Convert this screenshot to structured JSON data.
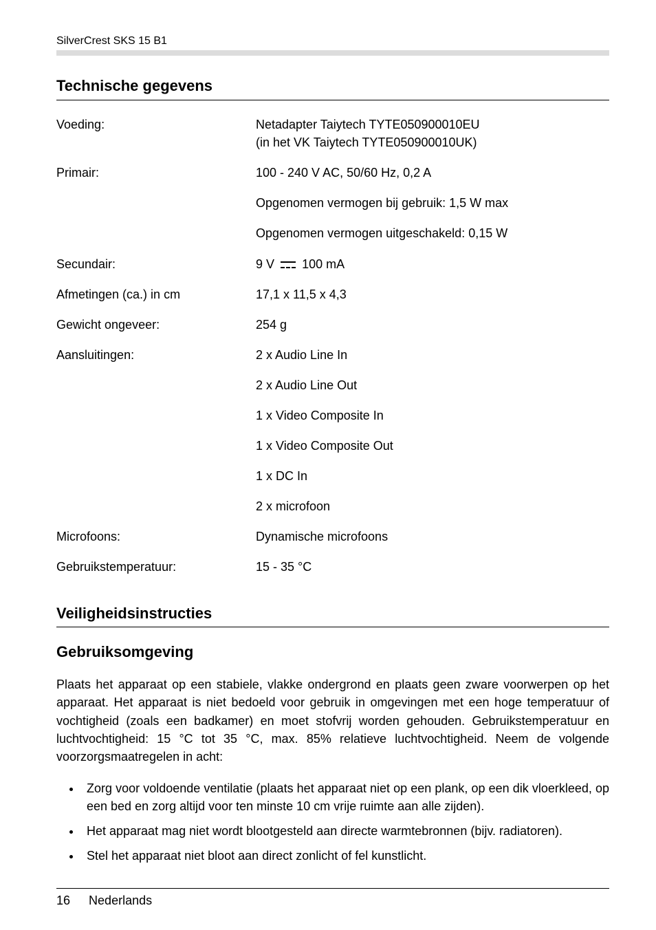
{
  "header": {
    "product": "SilverCrest SKS 15 B1"
  },
  "sections": {
    "tech_title": "Technische gegevens",
    "safety_title": "Veiligheidsinstructies",
    "env_title": "Gebruiksomgeving"
  },
  "specs": {
    "voeding": {
      "label": "Voeding:",
      "line1": "Netadapter Taiytech TYTE050900010EU",
      "line2": "(in het VK Taiytech TYTE050900010UK)"
    },
    "primair": {
      "label": "Primair:",
      "line1": "100 - 240 V AC, 50/60 Hz, 0,2 A",
      "line2": "Opgenomen vermogen bij gebruik: 1,5 W max",
      "line3": "Opgenomen vermogen uitgeschakeld: 0,15 W"
    },
    "secundair": {
      "label": "Secundair:",
      "value_prefix": "9 V",
      "value_suffix": "100 mA"
    },
    "afmetingen": {
      "label": "Afmetingen (ca.) in cm",
      "value": "17,1 x 11,5 x 4,3"
    },
    "gewicht": {
      "label": "Gewicht ongeveer:",
      "value": "254 g"
    },
    "aansluitingen": {
      "label": "Aansluitingen:",
      "items": [
        "2 x Audio Line In",
        "2 x Audio Line Out",
        "1 x Video Composite In",
        "1 x Video Composite Out",
        "1 x DC In",
        "2 x microfoon"
      ]
    },
    "microfoons": {
      "label": "Microfoons:",
      "value": "Dynamische microfoons"
    },
    "temp": {
      "label": "Gebruikstemperatuur:",
      "value": "15 - 35 °C"
    }
  },
  "body": {
    "env_para": "Plaats het apparaat op een stabiele, vlakke ondergrond en plaats geen zware voorwerpen op het apparaat. Het apparaat is niet bedoeld voor gebruik in omgevingen met een hoge temperatuur of vochtigheid (zoals een badkamer) en moet stofvrij worden gehouden. Gebruikstemperatuur en luchtvochtigheid: 15 °C tot 35 °C, max. 85% relatieve luchtvochtigheid. Neem de volgende voorzorgsmaatregelen in acht:",
    "bullets": [
      "Zorg voor voldoende ventilatie (plaats het apparaat niet op een plank, op een dik vloerkleed, op een bed en zorg altijd voor ten minste 10 cm vrije ruimte aan alle zijden).",
      "Het apparaat mag niet wordt blootgesteld aan directe warmtebronnen (bijv. radiatoren).",
      "Stel het apparaat niet bloot aan direct zonlicht of fel kunstlicht."
    ]
  },
  "footer": {
    "page": "16",
    "lang": "Nederlands"
  }
}
